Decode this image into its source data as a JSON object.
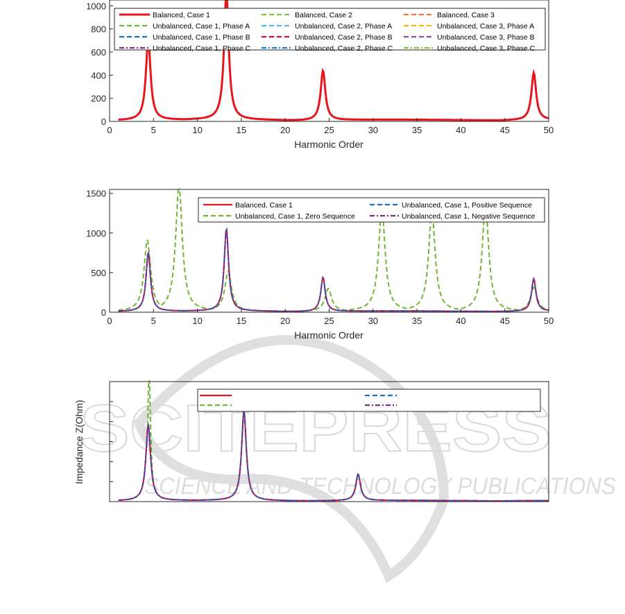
{
  "watermark": {
    "main": "SCITEPRESS",
    "sub": "SCIENCE AND TECHNOLOGY PUBLICATIONS"
  },
  "chart_data": [
    {
      "type": "line",
      "xlabel": "Harmonic Order",
      "ylabel": "",
      "xlim": [
        0,
        50
      ],
      "ylim": [
        0,
        1050
      ],
      "xticks": [
        0,
        5,
        10,
        15,
        20,
        25,
        30,
        35,
        40,
        45,
        50
      ],
      "yticks": [
        0,
        200,
        400,
        600,
        800,
        1000
      ],
      "legend_position": "top",
      "series": [
        {
          "name": "Balanced, Case 1",
          "color": "#e8141a",
          "dash": "solid",
          "width": 3
        },
        {
          "name": "Unbalanced, Case 1, Phase A",
          "color": "#6fb432",
          "dash": "dash"
        },
        {
          "name": "Unbalanced, Case 1, Phase B",
          "color": "#1a6fc0",
          "dash": "dash"
        },
        {
          "name": "Unbalanced, Case 1, Phase C",
          "color": "#7a2b8a",
          "dash": "dashdot"
        },
        {
          "name": "Balanced, Case 2",
          "color": "#7cbd3c",
          "dash": "dash"
        },
        {
          "name": "Unbalanced, Case 2, Phase A",
          "color": "#4db8e8",
          "dash": "dash"
        },
        {
          "name": "Unbalanced, Case 2, Phase B",
          "color": "#c8102e",
          "dash": "dash"
        },
        {
          "name": "Unbalanced, Case 2, Phase C",
          "color": "#1f7ac4",
          "dash": "dashdot"
        },
        {
          "name": "Balanced, Case 3",
          "color": "#f07840",
          "dash": "dash"
        },
        {
          "name": "Unbalanced, Case 3, Phase A",
          "color": "#f2b418",
          "dash": "dash"
        },
        {
          "name": "Unbalanced, Case 3, Phase B",
          "color": "#8e4aa8",
          "dash": "dash"
        },
        {
          "name": "Unbalanced, Case 3, Phase C",
          "color": "#7cbd3c",
          "dash": "dashdot"
        }
      ],
      "resonances": [
        {
          "x": 4.4,
          "y": 700
        },
        {
          "x": 13.3,
          "y": 1100
        },
        {
          "x": 24.3,
          "y": 430
        },
        {
          "x": 48.3,
          "y": 410
        }
      ]
    },
    {
      "type": "line",
      "xlabel": "Harmonic Order",
      "ylabel": "",
      "xlim": [
        0,
        50
      ],
      "ylim": [
        0,
        1550
      ],
      "xticks": [
        0,
        5,
        10,
        15,
        20,
        25,
        30,
        35,
        40,
        45,
        50
      ],
      "yticks": [
        0,
        500,
        1000,
        1500
      ],
      "legend_position": "top-right",
      "series": [
        {
          "name": "Balanced, Case 1",
          "color": "#e8141a",
          "dash": "solid"
        },
        {
          "name": "Unbalanced, Case 1, Zero Sequence",
          "color": "#6fb432",
          "dash": "dash"
        },
        {
          "name": "Unbalanced, Case 1, Positive Sequence",
          "color": "#1a6fc0",
          "dash": "dash"
        },
        {
          "name": "Unbalanced, Case 1, Negative Sequence",
          "color": "#7a2b8a",
          "dash": "dashdot"
        }
      ],
      "resonances": [
        {
          "x": 4.4,
          "y": 740
        },
        {
          "x": 13.3,
          "y": 1040
        },
        {
          "x": 24.3,
          "y": 430
        },
        {
          "x": 48.3,
          "y": 410
        }
      ],
      "zero_sequence_peaks": [
        {
          "x": 4.3,
          "y": 900
        },
        {
          "x": 7.9,
          "y": 1600
        },
        {
          "x": 13.5,
          "y": 500
        },
        {
          "x": 24.9,
          "y": 290
        },
        {
          "x": 31.0,
          "y": 1300
        },
        {
          "x": 36.7,
          "y": 1250
        },
        {
          "x": 42.8,
          "y": 1350
        },
        {
          "x": 48.3,
          "y": 300
        }
      ]
    },
    {
      "type": "line",
      "xlabel": "",
      "ylabel": "Impedance Z(Ohm)",
      "xlim": [
        0,
        50
      ],
      "ylim": [
        0,
        1500
      ],
      "legend_position": "top-right",
      "series": [
        {
          "name": "",
          "color": "#e8141a",
          "dash": "solid"
        },
        {
          "name": "",
          "color": "#6fb432",
          "dash": "dash"
        },
        {
          "name": "",
          "color": "#1a6fc0",
          "dash": "dash"
        },
        {
          "name": "",
          "color": "#7a2b8a",
          "dash": "dashdot"
        }
      ],
      "resonances": [
        {
          "x": 4.4,
          "y": 950
        },
        {
          "x": 15.3,
          "y": 1120
        },
        {
          "x": 28.3,
          "y": 330
        }
      ],
      "extra_peak": {
        "x": 4.5,
        "y": 1600
      }
    }
  ]
}
